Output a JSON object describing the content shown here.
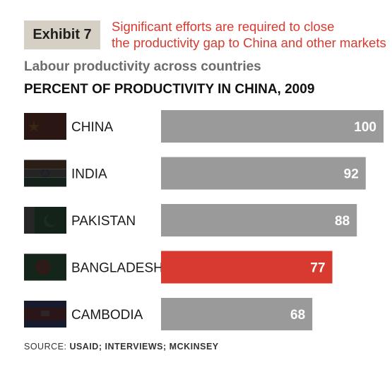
{
  "header": {
    "exhibit_label": "Exhibit 7",
    "headline_line1": "Significant efforts are required to close",
    "headline_line2": "the productivity gap to China and other markets",
    "subtitle": "Labour productivity across countries"
  },
  "source": {
    "prefix": "SOURCE:",
    "text": "USAID; INTERVIEWS; MCKINSEY"
  },
  "colors": {
    "default_bar": "#9a9a9a",
    "highlight_bar": "#d93a2f",
    "value_label": "#ffffff",
    "headline": "#d93a2f"
  },
  "chart_data": {
    "type": "bar",
    "orientation": "horizontal",
    "title": "PERCENT OF PRODUCTIVITY IN CHINA, 2009",
    "categories": [
      "CHINA",
      "INDIA",
      "PAKISTAN",
      "BANGLADESH",
      "CAMBODIA"
    ],
    "values": [
      100,
      92,
      88,
      77,
      68
    ],
    "highlight": "BANGLADESH",
    "xlim": [
      0,
      100
    ],
    "value_labels": true,
    "flags": [
      "china-flag-icon",
      "india-flag-icon",
      "pakistan-flag-icon",
      "bangladesh-flag-icon",
      "cambodia-flag-icon"
    ]
  }
}
